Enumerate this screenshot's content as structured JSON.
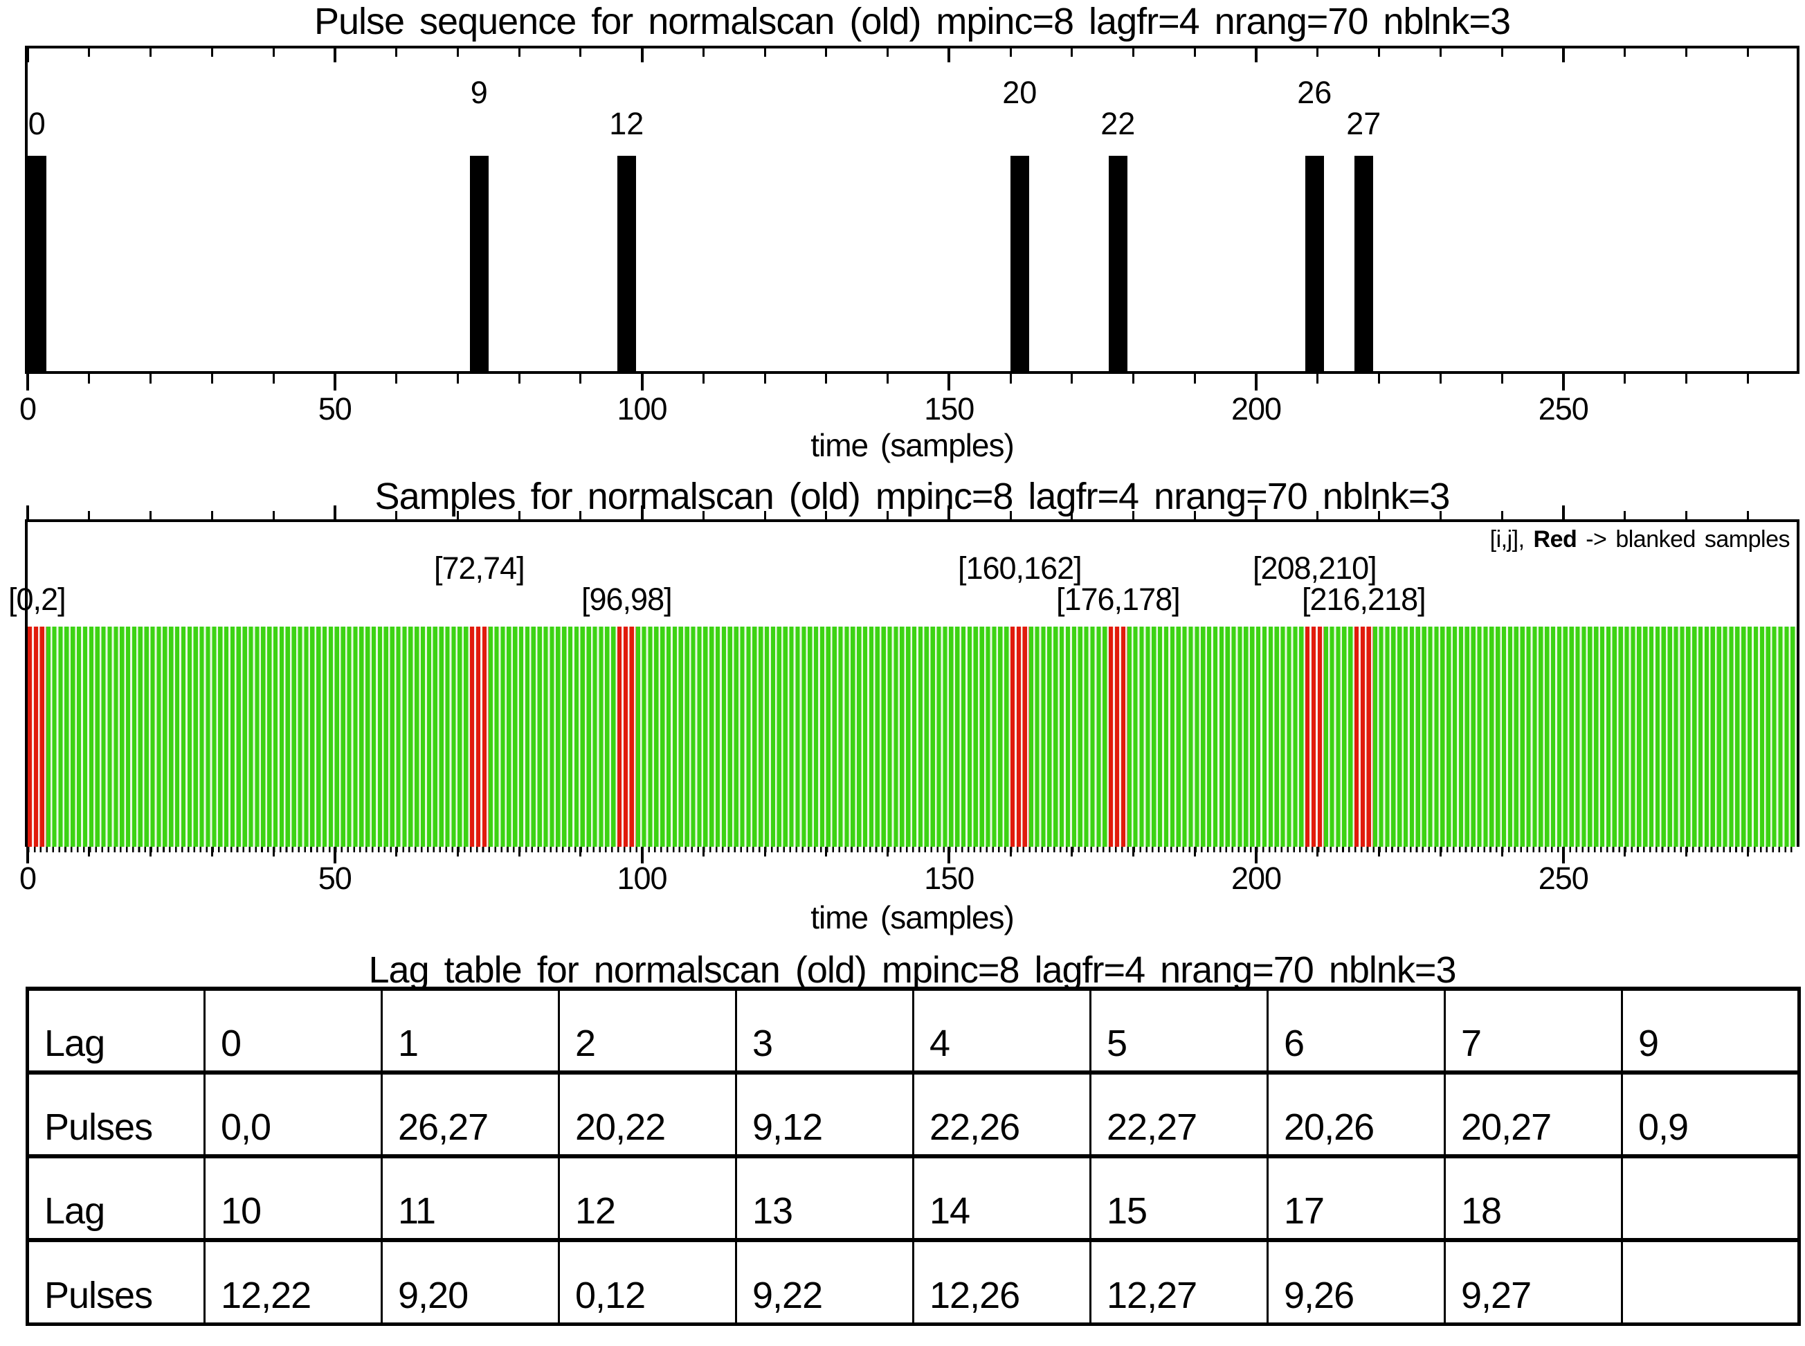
{
  "panel1": {
    "title": "Pulse sequence for normalscan (old) mpinc=8 lagfr=4 nrang=70 nblnk=3",
    "xlabel": "time (samples)",
    "x_max": 288,
    "tick_values": [
      0,
      50,
      100,
      150,
      200,
      250
    ],
    "tick_labels": [
      "0",
      "50",
      "100",
      "150",
      "200",
      "250"
    ],
    "minor_tick_step": 10,
    "pulse_width_samples": 3,
    "pulses": [
      {
        "n": "0",
        "t": 0
      },
      {
        "n": "9",
        "t": 72
      },
      {
        "n": "12",
        "t": 96
      },
      {
        "n": "20",
        "t": 160
      },
      {
        "n": "22",
        "t": 176
      },
      {
        "n": "26",
        "t": 208
      },
      {
        "n": "27",
        "t": 216
      }
    ]
  },
  "panel2": {
    "title": "Samples for normalscan (old) mpinc=8 lagfr=4 nrang=70 nblnk=3",
    "xlabel": "time (samples)",
    "x_max": 288,
    "tick_values": [
      0,
      50,
      100,
      150,
      200,
      250
    ],
    "tick_labels": [
      "0",
      "50",
      "100",
      "150",
      "200",
      "250"
    ],
    "minor_tick_step": 10,
    "legend": {
      "prefix": "[i,j],",
      "red_word": "Red",
      "suffix": "-> blanked samples"
    },
    "blanked": [
      {
        "range": [
          0,
          2
        ],
        "label": "[0,2]"
      },
      {
        "range": [
          72,
          74
        ],
        "label": "[72,74]"
      },
      {
        "range": [
          96,
          98
        ],
        "label": "[96,98]"
      },
      {
        "range": [
          160,
          162
        ],
        "label": "[160,162]"
      },
      {
        "range": [
          176,
          178
        ],
        "label": "[176,178]"
      },
      {
        "range": [
          208,
          210
        ],
        "label": "[208,210]"
      },
      {
        "range": [
          216,
          218
        ],
        "label": "[216,218]"
      }
    ],
    "colors": {
      "sample_green": "#3cd313",
      "sample_gap": "#e9f9e3",
      "blanked_red": "#e11b0c",
      "blanked_gap": "#f9ece8"
    }
  },
  "lag_table": {
    "title": "Lag table for normalscan (old) mpinc=8 lagfr=4 nrang=70 nblnk=3",
    "rows": [
      [
        "Lag",
        "0",
        "1",
        "2",
        "3",
        "4",
        "5",
        "6",
        "7",
        "9"
      ],
      [
        "Pulses",
        "0,0",
        "26,27",
        "20,22",
        "9,12",
        "22,26",
        "22,27",
        "20,26",
        "20,27",
        "0,9"
      ],
      [
        "Lag",
        "10",
        "11",
        "12",
        "13",
        "14",
        "15",
        "17",
        "18",
        ""
      ],
      [
        "Pulses",
        "12,22",
        "9,20",
        "0,12",
        "9,22",
        "12,26",
        "12,27",
        "9,26",
        "9,27",
        ""
      ]
    ]
  },
  "chart_data": [
    {
      "type": "bar",
      "title": "Pulse sequence for normalscan (old) mpinc=8 lagfr=4 nrang=70 nblnk=3",
      "xlabel": "time (samples)",
      "xlim": [
        0,
        288
      ],
      "x_ticks": [
        0,
        50,
        100,
        150,
        200,
        250
      ],
      "bar_color": "#000000",
      "bar_width_samples": 3,
      "pulse_numbers": [
        0,
        9,
        12,
        20,
        22,
        26,
        27
      ],
      "pulse_times_samples": [
        0,
        72,
        96,
        160,
        176,
        208,
        216
      ]
    },
    {
      "type": "bar",
      "title": "Samples for normalscan (old) mpinc=8 lagfr=4 nrang=70 nblnk=3",
      "xlabel": "time (samples)",
      "xlim": [
        0,
        288
      ],
      "x_ticks": [
        0,
        50,
        100,
        150,
        200,
        250
      ],
      "samples_range": [
        0,
        287
      ],
      "sample_color": "#3cd313",
      "blanked_color": "#e11b0c",
      "blanked_sample_groups": [
        [
          0,
          2
        ],
        [
          72,
          74
        ],
        [
          96,
          98
        ],
        [
          160,
          162
        ],
        [
          176,
          178
        ],
        [
          208,
          210
        ],
        [
          216,
          218
        ]
      ],
      "legend": "[i,j], Red -> blanked samples"
    },
    {
      "type": "table",
      "title": "Lag table for normalscan (old) mpinc=8 lagfr=4 nrang=70 nblnk=3",
      "rows": [
        [
          "Lag",
          "0",
          "1",
          "2",
          "3",
          "4",
          "5",
          "6",
          "7",
          "9"
        ],
        [
          "Pulses",
          "0,0",
          "26,27",
          "20,22",
          "9,12",
          "22,26",
          "22,27",
          "20,26",
          "20,27",
          "0,9"
        ],
        [
          "Lag",
          "10",
          "11",
          "12",
          "13",
          "14",
          "15",
          "17",
          "18",
          ""
        ],
        [
          "Pulses",
          "12,22",
          "9,20",
          "0,12",
          "9,22",
          "12,26",
          "12,27",
          "9,26",
          "9,27",
          ""
        ]
      ]
    }
  ]
}
